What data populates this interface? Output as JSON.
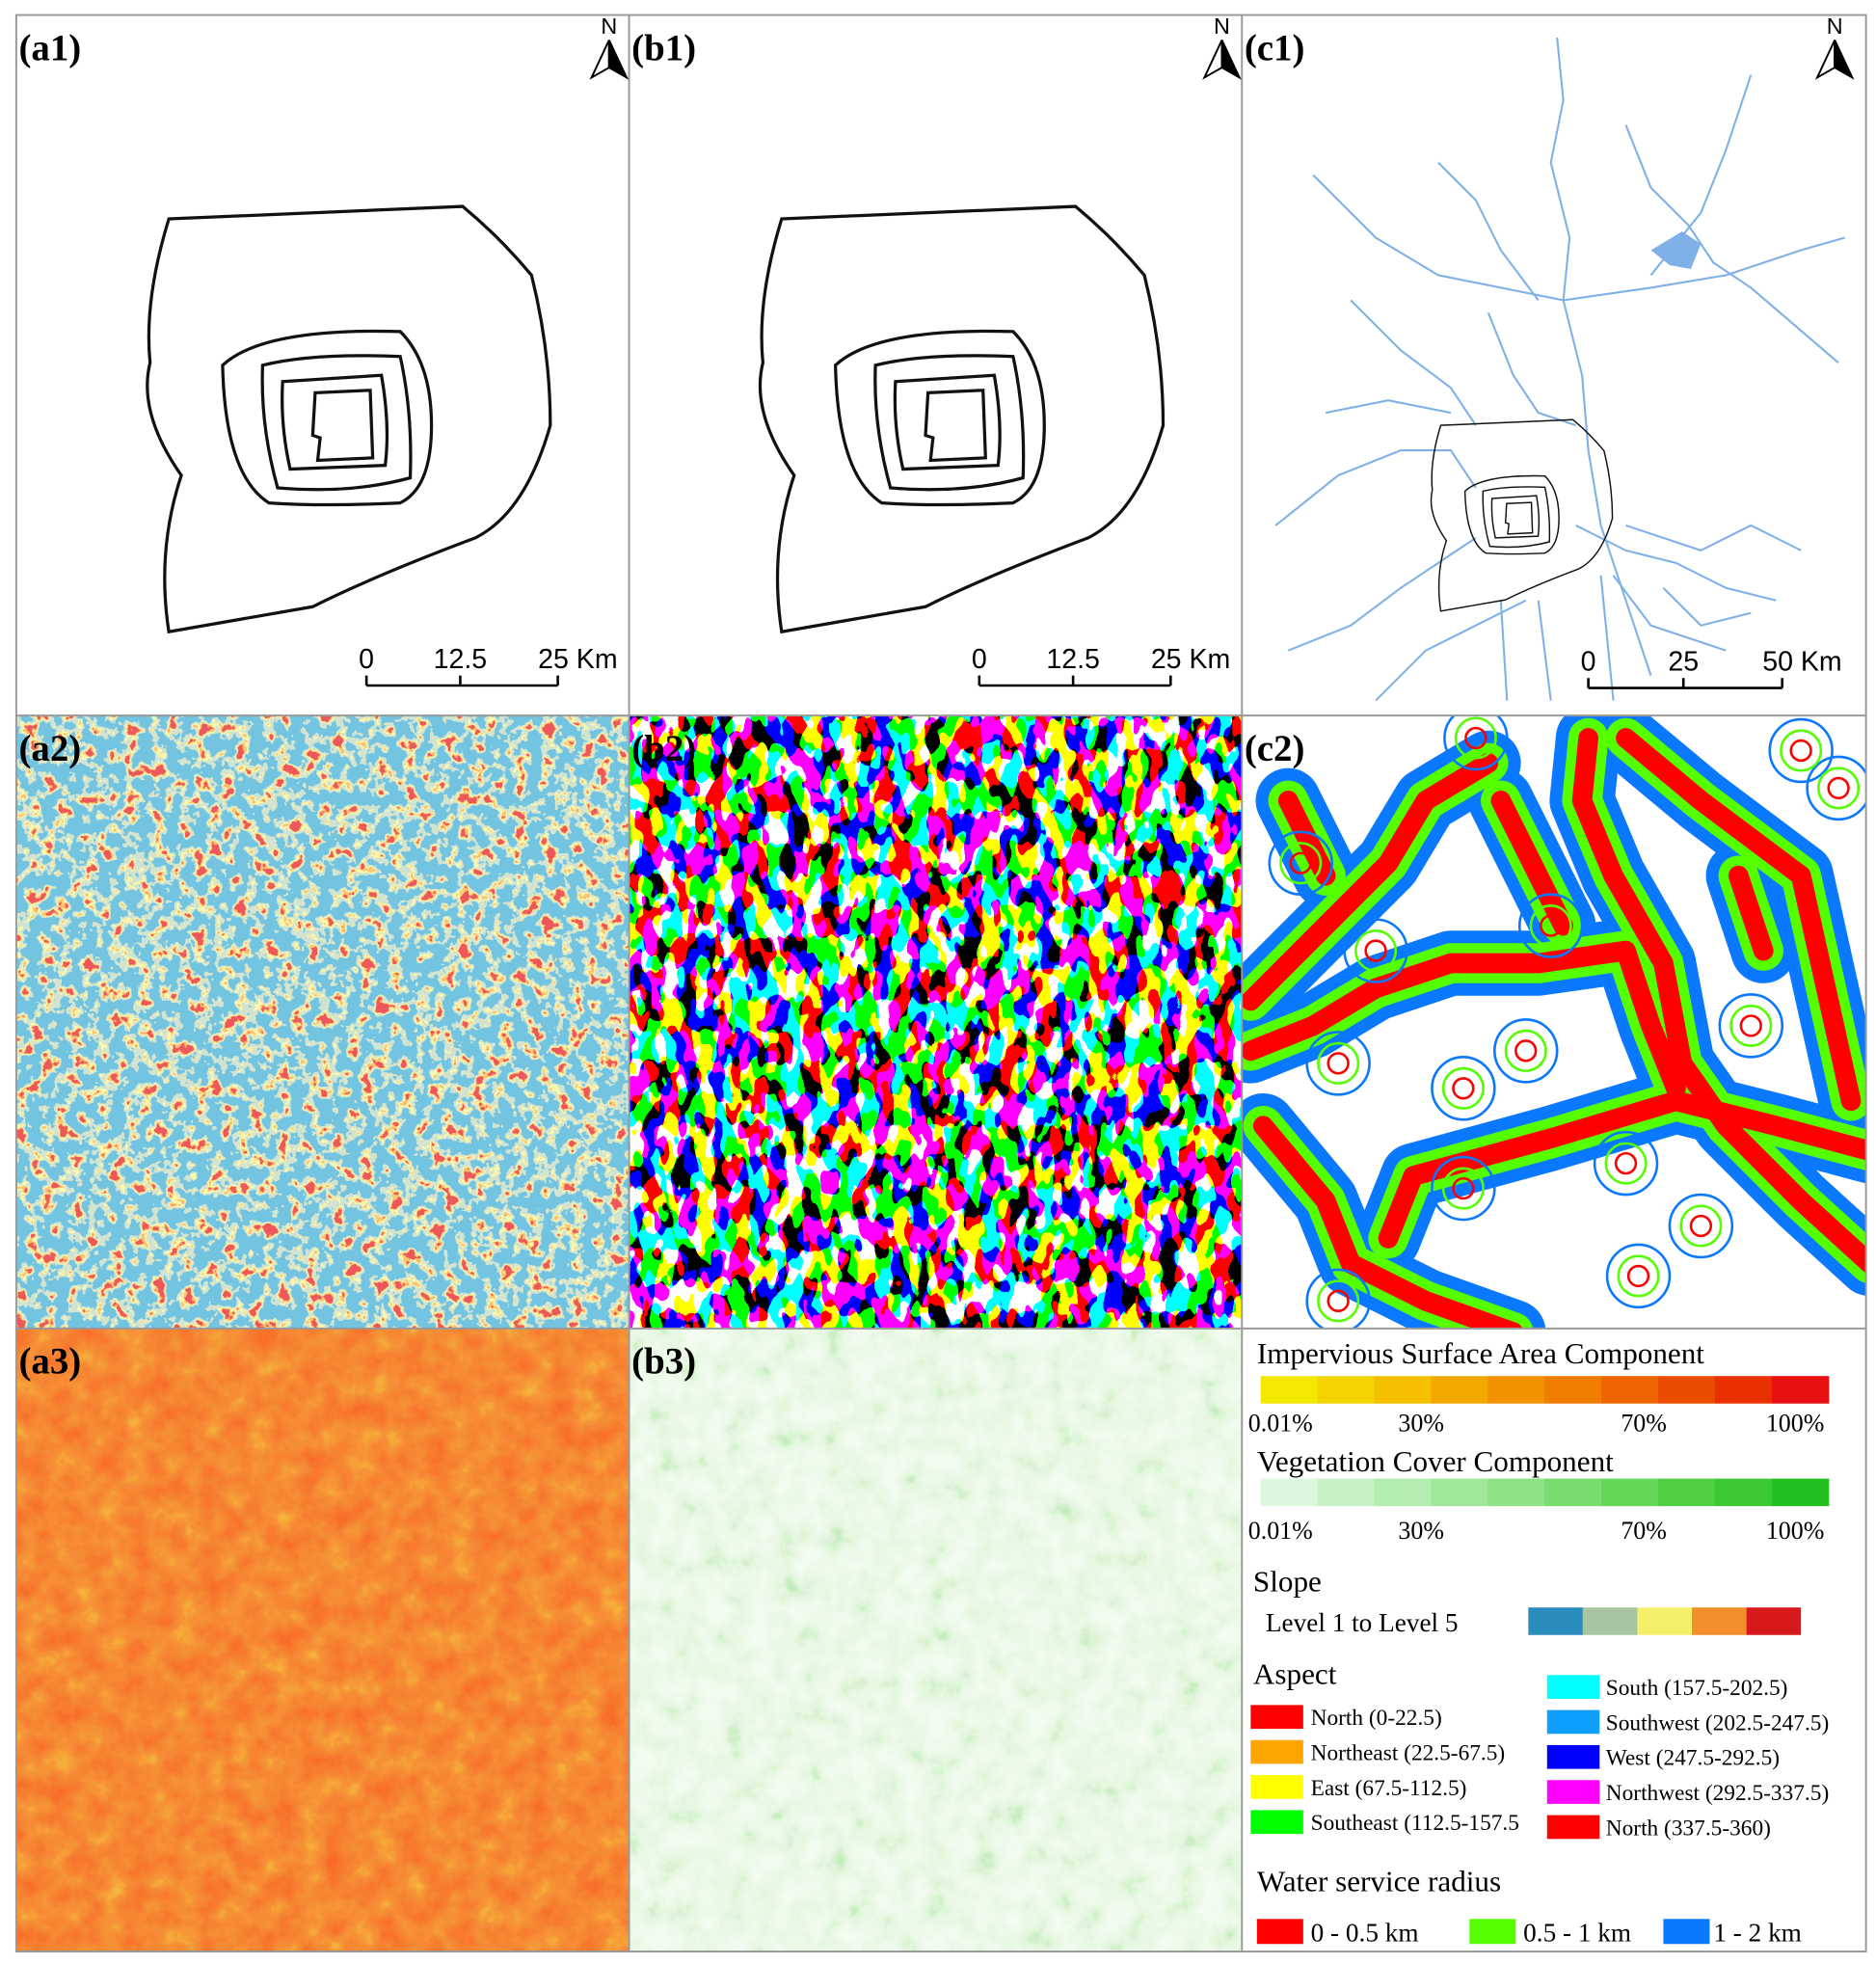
{
  "panel_labels": [
    "(a1)",
    "(b1)",
    "(c1)",
    "(a2)",
    "(b2)",
    "(c2)",
    "(a3)",
    "(b3)"
  ],
  "north_label": "N",
  "scale_bars": [
    {
      "labels": [
        "0",
        "12.5",
        "25 Km"
      ]
    },
    {
      "labels": [
        "0",
        "12.5",
        "25 Km"
      ]
    },
    {
      "labels": [
        "0",
        "25",
        "50 Km"
      ]
    }
  ],
  "legend": {
    "isa": {
      "title": "Impervious Surface Area Component",
      "colors": [
        "#f5e800",
        "#f4d400",
        "#f4c000",
        "#f3a800",
        "#f29200",
        "#f07c00",
        "#ee6400",
        "#ec4c00",
        "#ea3000",
        "#e81010"
      ],
      "labels": [
        "0.01%",
        "30%",
        "70%",
        "100%"
      ]
    },
    "vegetation": {
      "title": "Vegetation Cover Component",
      "colors": [
        "#dcf7dc",
        "#c8f2c6",
        "#b4edb0",
        "#a0e89a",
        "#8ce284",
        "#78dc6e",
        "#64d658",
        "#50cf44",
        "#3cc832",
        "#22c020"
      ],
      "labels": [
        "0.01%",
        "30%",
        "70%",
        "100%"
      ]
    },
    "slope": {
      "title": "Slope",
      "label": "Level 1 to Level 5",
      "colors": [
        "#2b8cbe",
        "#a6c5a0",
        "#f5f06a",
        "#f28e2c",
        "#d7191c"
      ]
    },
    "aspect": {
      "title": "Aspect",
      "items": [
        {
          "name": "North (0-22.5)",
          "color": "#ff0000"
        },
        {
          "name": "Northeast (22.5-67.5)",
          "color": "#ffa500"
        },
        {
          "name": "East (67.5-112.5)",
          "color": "#ffff00"
        },
        {
          "name": "Southeast (112.5-157.5",
          "color": "#00ff00"
        },
        {
          "name": "South (157.5-202.5)",
          "color": "#00ffff"
        },
        {
          "name": "Southwest (202.5-247.5)",
          "color": "#0fa0ff"
        },
        {
          "name": "West (247.5-292.5)",
          "color": "#0000ff"
        },
        {
          "name": "Northwest (292.5-337.5)",
          "color": "#ff00ff"
        },
        {
          "name": "North (337.5-360)",
          "color": "#ff0000"
        }
      ]
    },
    "water": {
      "title": "Water service radius",
      "items": [
        {
          "name": "0 - 0.5 km",
          "color": "#ff0000"
        },
        {
          "name": "0.5 - 1 km",
          "color": "#55ff00"
        },
        {
          "name": "1 - 2 km",
          "color": "#0a78ff"
        }
      ]
    }
  }
}
